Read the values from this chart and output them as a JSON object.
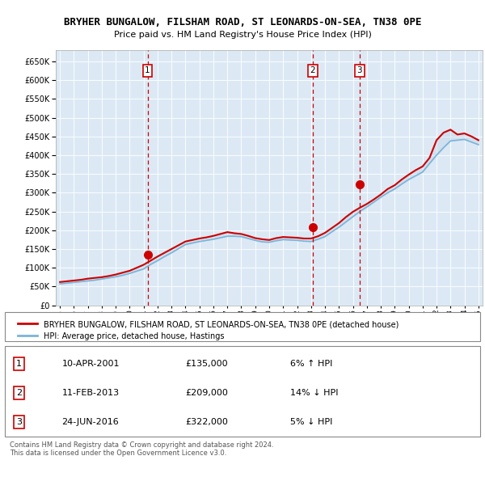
{
  "title": "BRYHER BUNGALOW, FILSHAM ROAD, ST LEONARDS-ON-SEA, TN38 0PE",
  "subtitle": "Price paid vs. HM Land Registry's House Price Index (HPI)",
  "ylim": [
    0,
    680000
  ],
  "yticks": [
    0,
    50000,
    100000,
    150000,
    200000,
    250000,
    300000,
    350000,
    400000,
    450000,
    500000,
    550000,
    600000,
    650000
  ],
  "plot_bg": "#dce9f5",
  "legend_label_red": "BRYHER BUNGALOW, FILSHAM ROAD, ST LEONARDS-ON-SEA, TN38 0PE (detached house)",
  "legend_label_blue": "HPI: Average price, detached house, Hastings",
  "footer": "Contains HM Land Registry data © Crown copyright and database right 2024.\nThis data is licensed under the Open Government Licence v3.0.",
  "transactions": [
    {
      "num": 1,
      "date": "10-APR-2001",
      "price": 135000,
      "vs_hpi": "6% ↑ HPI",
      "year": 2001.28
    },
    {
      "num": 2,
      "date": "11-FEB-2013",
      "price": 209000,
      "vs_hpi": "14% ↓ HPI",
      "year": 2013.12
    },
    {
      "num": 3,
      "date": "24-JUN-2016",
      "price": 322000,
      "vs_hpi": "5% ↓ HPI",
      "year": 2016.48
    }
  ],
  "hpi_years": [
    1995.0,
    1995.5,
    1996.0,
    1996.5,
    1997.0,
    1997.5,
    1998.0,
    1998.5,
    1999.0,
    1999.5,
    2000.0,
    2000.5,
    2001.0,
    2001.5,
    2002.0,
    2002.5,
    2003.0,
    2003.5,
    2004.0,
    2004.5,
    2005.0,
    2005.5,
    2006.0,
    2006.5,
    2007.0,
    2007.5,
    2008.0,
    2008.5,
    2009.0,
    2009.5,
    2010.0,
    2010.5,
    2011.0,
    2011.5,
    2012.0,
    2012.5,
    2013.0,
    2013.5,
    2014.0,
    2014.5,
    2015.0,
    2015.5,
    2016.0,
    2016.5,
    2017.0,
    2017.5,
    2018.0,
    2018.5,
    2019.0,
    2019.5,
    2020.0,
    2020.5,
    2021.0,
    2021.5,
    2022.0,
    2022.5,
    2023.0,
    2023.5,
    2024.0,
    2024.5,
    2025.0
  ],
  "hpi_values": [
    57000,
    59000,
    61000,
    63000,
    65000,
    67000,
    70000,
    73000,
    76000,
    80000,
    85000,
    91000,
    97000,
    109000,
    119000,
    130000,
    140000,
    151000,
    162000,
    166000,
    170000,
    173000,
    176000,
    180000,
    184000,
    184000,
    183000,
    178000,
    173000,
    169000,
    168000,
    172000,
    175000,
    174000,
    173000,
    171000,
    170000,
    176000,
    183000,
    196000,
    208000,
    222000,
    236000,
    250000,
    262000,
    275000,
    288000,
    300000,
    310000,
    323000,
    335000,
    345000,
    355000,
    378000,
    400000,
    420000,
    438000,
    440000,
    442000,
    435000,
    428000
  ],
  "red_years": [
    1995.0,
    1995.5,
    1996.0,
    1996.5,
    1997.0,
    1997.5,
    1998.0,
    1998.5,
    1999.0,
    1999.5,
    2000.0,
    2000.5,
    2001.0,
    2001.5,
    2002.0,
    2002.5,
    2003.0,
    2003.5,
    2004.0,
    2004.5,
    2005.0,
    2005.5,
    2006.0,
    2006.5,
    2007.0,
    2007.5,
    2008.0,
    2008.5,
    2009.0,
    2009.5,
    2010.0,
    2010.5,
    2011.0,
    2011.5,
    2012.0,
    2012.5,
    2013.0,
    2013.5,
    2014.0,
    2014.5,
    2015.0,
    2015.5,
    2016.0,
    2016.5,
    2017.0,
    2017.5,
    2018.0,
    2018.5,
    2019.0,
    2019.5,
    2020.0,
    2020.5,
    2021.0,
    2021.5,
    2022.0,
    2022.5,
    2023.0,
    2023.5,
    2024.0,
    2024.5,
    2025.0
  ],
  "red_values": [
    62000,
    64000,
    66000,
    68000,
    71000,
    73000,
    75000,
    78000,
    82000,
    87000,
    92000,
    100000,
    108000,
    119000,
    130000,
    140000,
    150000,
    160000,
    170000,
    174000,
    178000,
    181000,
    185000,
    190000,
    195000,
    192000,
    190000,
    185000,
    179000,
    176000,
    174000,
    179000,
    182000,
    181000,
    180000,
    178000,
    178000,
    184000,
    193000,
    206000,
    219000,
    235000,
    249000,
    260000,
    270000,
    282000,
    295000,
    310000,
    320000,
    335000,
    348000,
    360000,
    370000,
    393000,
    440000,
    460000,
    468000,
    455000,
    458000,
    450000,
    440000
  ]
}
